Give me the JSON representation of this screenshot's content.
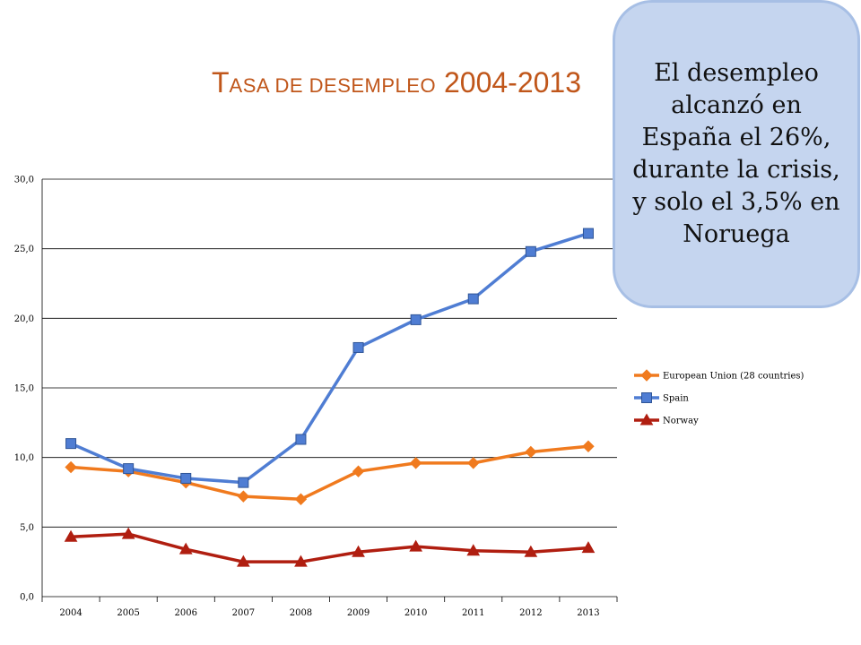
{
  "title": {
    "first_letter": "T",
    "rest_smallcaps": "ASA DE DESEMPLEO",
    "years": "2004-2013"
  },
  "callout": {
    "text": "El desempleo alcanzó en España el 26%, durante la crisis, y solo el 3,5% en Noruega"
  },
  "chart_data": {
    "type": "line",
    "categories": [
      "2004",
      "2005",
      "2006",
      "2007",
      "2008",
      "2009",
      "2010",
      "2011",
      "2012",
      "2013"
    ],
    "ylim": [
      0,
      30
    ],
    "yticks": [
      "0,0",
      "5,0",
      "10,0",
      "15,0",
      "20,0",
      "25,0",
      "30,0"
    ],
    "grid": true,
    "legend_position": "right",
    "series": [
      {
        "name": "European Union (28 countries)",
        "color": "#f07a1e",
        "marker": "diamond",
        "values": [
          9.3,
          9.0,
          8.2,
          7.2,
          7.0,
          9.0,
          9.6,
          9.6,
          10.4,
          10.8
        ]
      },
      {
        "name": "Spain",
        "color": "#4f7dd3",
        "marker": "square",
        "values": [
          11.0,
          9.2,
          8.5,
          8.2,
          11.3,
          17.9,
          19.9,
          21.4,
          24.8,
          26.1
        ]
      },
      {
        "name": "Norway",
        "color": "#b01e10",
        "marker": "triangle",
        "values": [
          4.3,
          4.5,
          3.4,
          2.5,
          2.5,
          3.2,
          3.6,
          3.3,
          3.2,
          3.5
        ]
      }
    ]
  }
}
